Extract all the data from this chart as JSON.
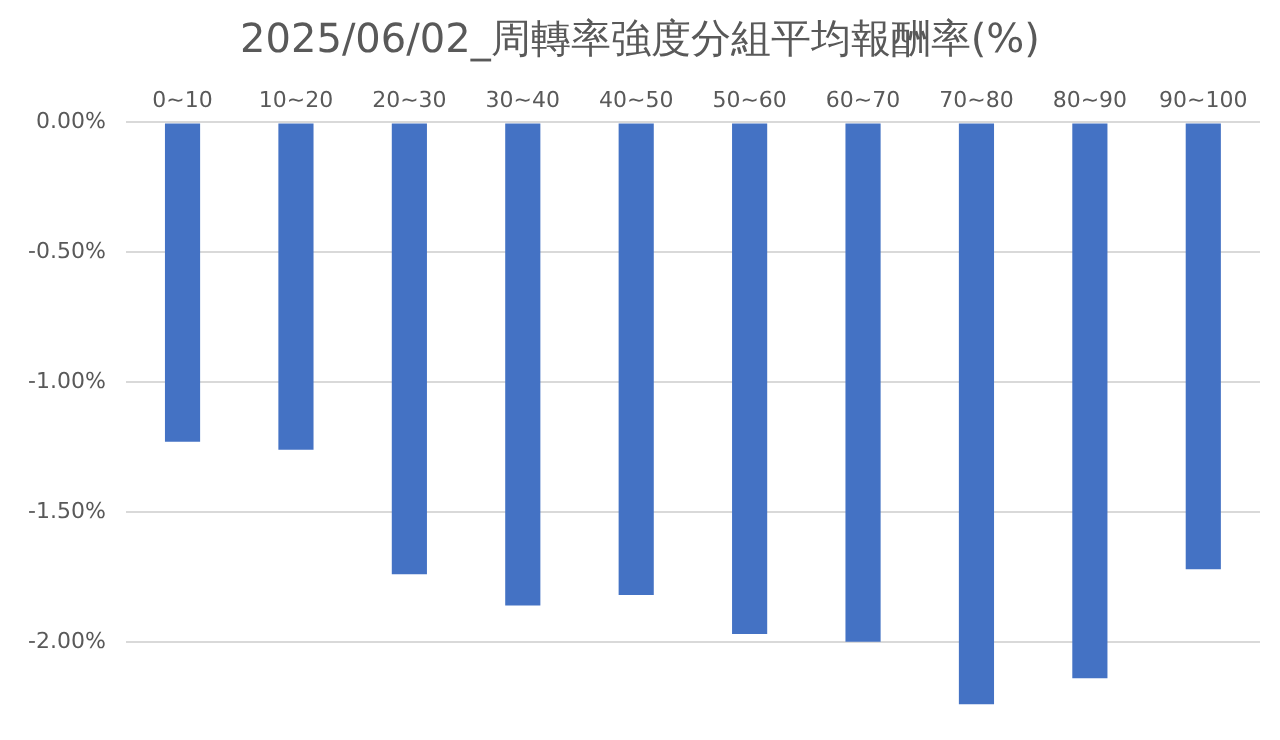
{
  "chart_data": {
    "type": "bar",
    "title": "2025/06/02_周轉率強度分組平均報酬率(%)",
    "categories": [
      "0~10",
      "10~20",
      "20~30",
      "30~40",
      "40~50",
      "50~60",
      "60~70",
      "70~80",
      "80~90",
      "90~100"
    ],
    "values": [
      -1.23,
      -1.26,
      -1.74,
      -1.86,
      -1.82,
      -1.97,
      -2.0,
      -2.24,
      -2.14,
      -1.72
    ],
    "color": "#4472c4",
    "ylim": [
      -2.25,
      0
    ],
    "yticks": [
      {
        "value": 0,
        "label": "0.00%"
      },
      {
        "value": -0.5,
        "label": "-0.50%"
      },
      {
        "value": -1,
        "label": "-1.00%"
      },
      {
        "value": -1.5,
        "label": "-1.50%"
      },
      {
        "value": -2,
        "label": "-2.00%"
      }
    ],
    "grid": "y",
    "legend": false
  }
}
